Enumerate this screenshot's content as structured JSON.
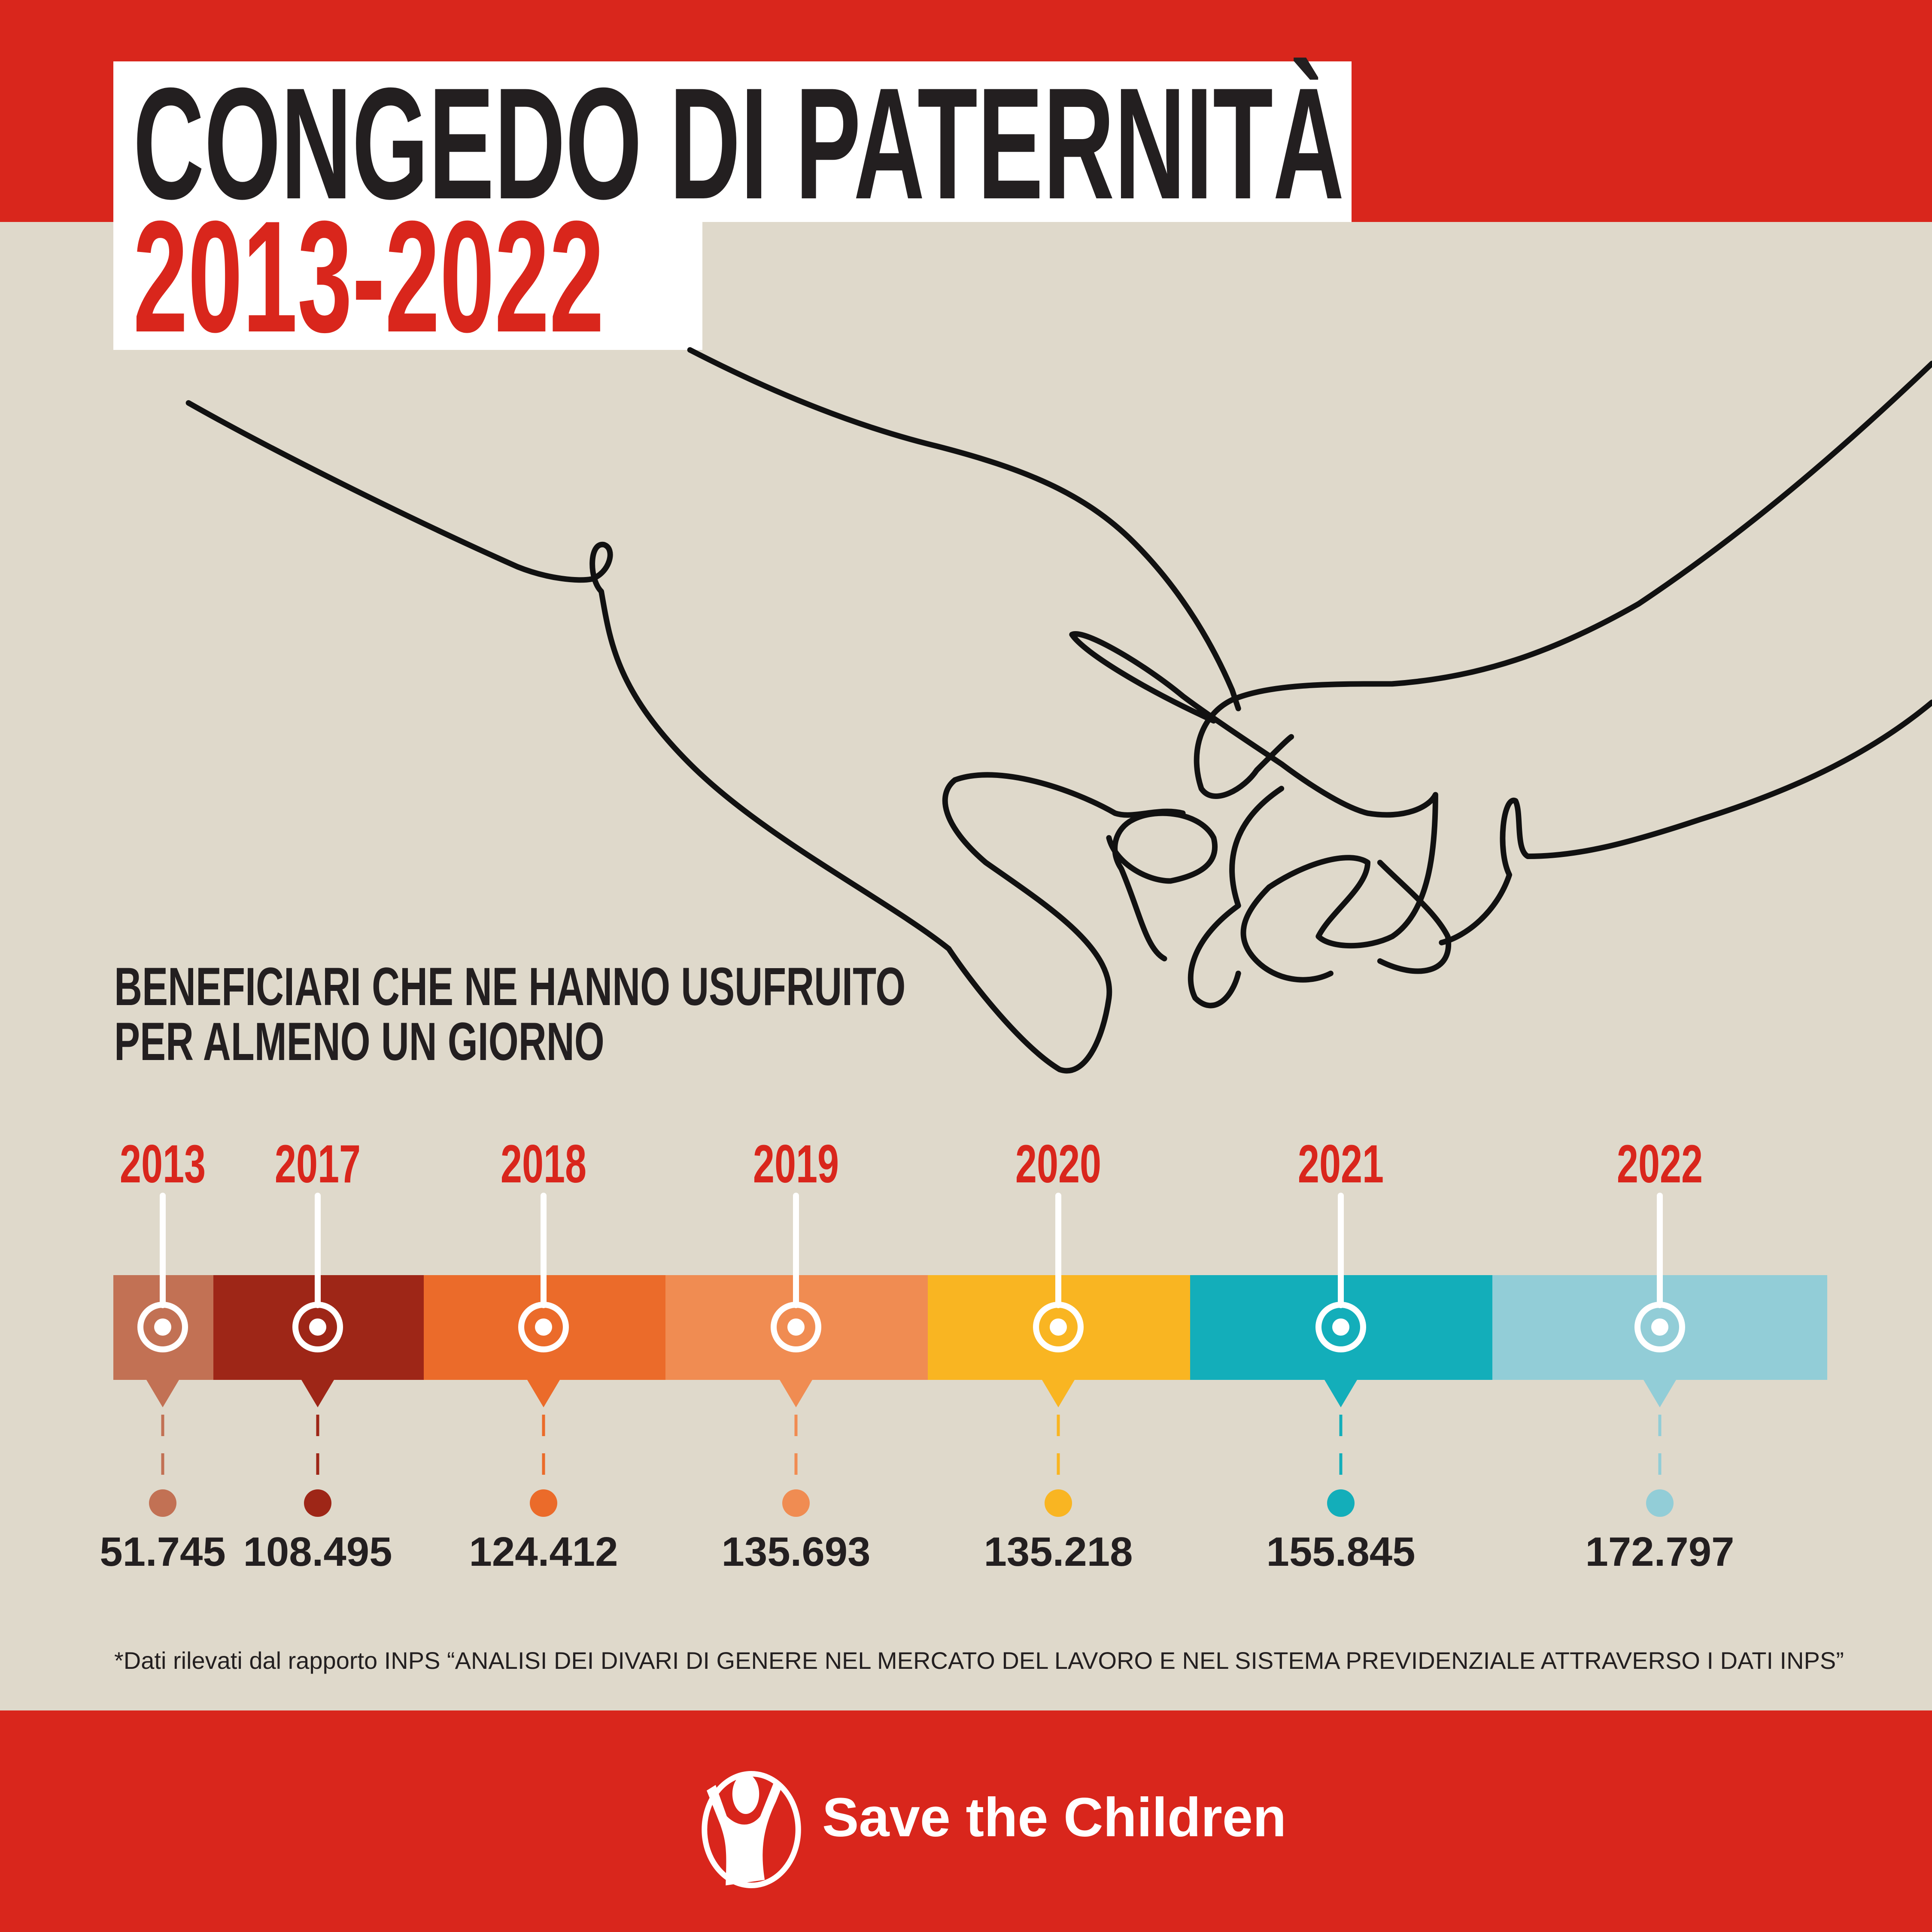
{
  "title": "CONGEDO DI PATERNITÀ",
  "period": "2013-2022",
  "subtitle_line1": "BENEFICIARI CHE NE HANNO USUFRUITO",
  "subtitle_line2": "PER ALMENO UN GIORNO",
  "footnote": "*Dati rilevati dal rapporto INPS “ANALISI DEI DIVARI DI GENERE NEL MERCATO DEL LAVORO E NEL SISTEMA PREVIDENZIALE ATTRAVERSO I DATI INPS”",
  "logo_text": "Save the Children",
  "colors": {
    "brand_red": "#d9261c",
    "background": "#dfd9cb",
    "text": "#231f20"
  },
  "chart_data": {
    "type": "timeline",
    "title": "BENEFICIARI CHE NE HANNO USUFRUITO PER ALMENO UN GIORNO",
    "categories": [
      "2013",
      "2017",
      "2018",
      "2019",
      "2020",
      "2021",
      "2022"
    ],
    "values": [
      51745,
      108495,
      124412,
      135693,
      135218,
      155845,
      172797
    ],
    "value_labels": [
      "51.745",
      "108.495",
      "124.412",
      "135.693",
      "135.218",
      "155.845",
      "172.797"
    ],
    "colors": [
      "#c27154",
      "#9e2617",
      "#eb6b2a",
      "#f08c52",
      "#f9b522",
      "#13aeba",
      "#92cdd7"
    ]
  }
}
